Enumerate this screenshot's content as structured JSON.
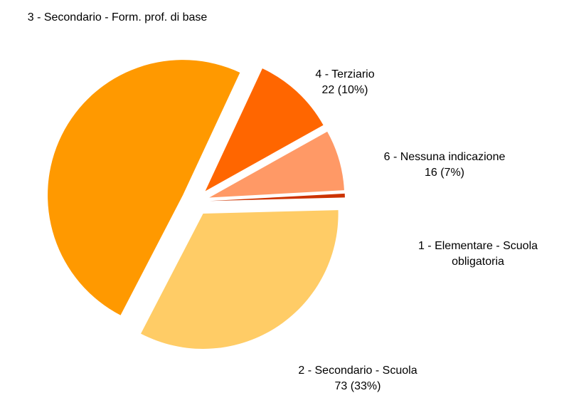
{
  "chart_data": {
    "type": "pie",
    "categories": [
      "4 - Terziario",
      "6 - Nessuna indicazione",
      "1 - Elementare - Scuola obligatoria",
      "2 - Secondario - Scuola",
      "3 - Secondario - Form. prof. di base"
    ],
    "values": [
      22,
      16,
      1,
      73,
      109
    ],
    "value_labels": [
      "22 (10%)",
      "16 (7%)",
      null,
      "73 (33%)",
      null
    ],
    "colors": [
      "#ff6600",
      "#ff9966",
      "#cc3300",
      "#ffcc66",
      "#ff9900"
    ]
  }
}
